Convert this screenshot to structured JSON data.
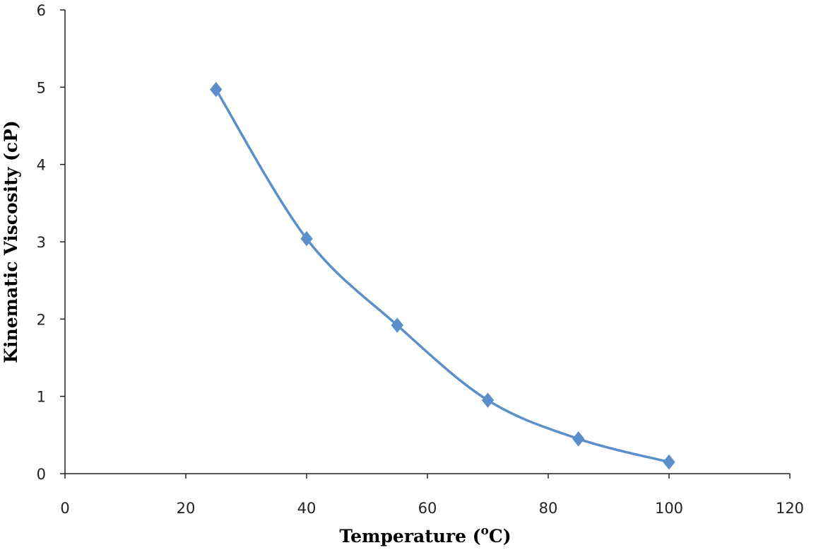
{
  "chart_data": {
    "type": "line",
    "title": "",
    "xlabel": "Temperature (",
    "xlabel_superscript": "o",
    "xlabel_suffix": "C)",
    "ylabel": "Kinematic Viscosity (cP)",
    "xlim": [
      0,
      120
    ],
    "ylim": [
      0,
      6
    ],
    "x_ticks": [
      0,
      20,
      40,
      60,
      80,
      100,
      120
    ],
    "y_ticks": [
      0,
      1,
      2,
      3,
      4,
      5,
      6
    ],
    "grid": false,
    "legend": "none",
    "series": [
      {
        "color": "#5b8fc9",
        "marker": "diamond",
        "smooth": true,
        "x": [
          25,
          40,
          55,
          70,
          85,
          100
        ],
        "y": [
          4.97,
          3.04,
          1.92,
          0.95,
          0.45,
          0.15
        ]
      }
    ]
  }
}
